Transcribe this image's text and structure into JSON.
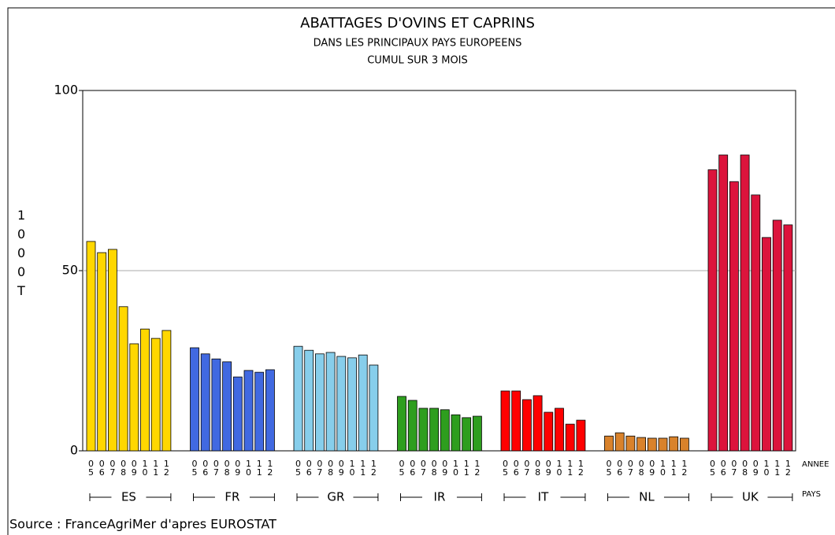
{
  "chart_data": {
    "type": "bar",
    "title": "ABATTAGES D'OVINS ET CAPRINS",
    "subtitle": [
      "DANS LES PRINCIPAUX PAYS EUROPEENS",
      "CUMUL SUR  3 MOIS"
    ],
    "y_label": "1000 T",
    "x_labels": [
      "ANNEE",
      "PAYS"
    ],
    "source": "Source : FranceAgriMer d'apres EUROSTAT",
    "categories": [
      "05",
      "06",
      "07",
      "08",
      "09",
      "10",
      "11",
      "12"
    ],
    "series": [
      {
        "name": "ES",
        "color": "#ffd700",
        "values": [
          58.1,
          55,
          55.9,
          40,
          29.7,
          33.8,
          31.2,
          33.4
        ]
      },
      {
        "name": "FR",
        "color": "#4169e1",
        "values": [
          28.6,
          26.9,
          25.5,
          24.7,
          20.5,
          22.3,
          21.8,
          22.5
        ]
      },
      {
        "name": "GR",
        "color": "#87ceeb",
        "values": [
          29,
          27.9,
          26.9,
          27.3,
          26.2,
          25.8,
          26.6,
          23.8
        ]
      },
      {
        "name": "IR",
        "color": "#2e9e1e",
        "values": [
          15.1,
          14,
          11.8,
          11.8,
          11.4,
          10,
          9.2,
          9.6
        ]
      },
      {
        "name": "IT",
        "color": "#ff0000",
        "values": [
          16.6,
          16.6,
          14.2,
          15.3,
          10.7,
          11.8,
          7.4,
          8.5
        ]
      },
      {
        "name": "NL",
        "color": "#d9822b",
        "values": [
          4.1,
          5,
          4.1,
          3.7,
          3.5,
          3.5,
          3.9,
          3.5
        ]
      },
      {
        "name": "UK",
        "color": "#dc143c",
        "values": [
          78,
          82.1,
          74.7,
          82.1,
          71,
          59.2,
          64,
          62.7
        ]
      }
    ],
    "ylim": [
      0,
      100
    ],
    "yticks": [
      0,
      50,
      100
    ],
    "grid": true
  }
}
